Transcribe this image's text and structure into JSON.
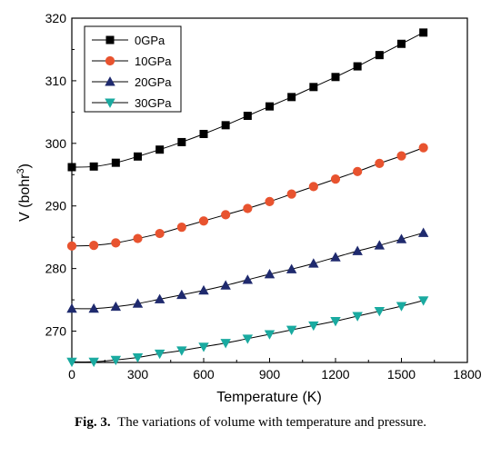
{
  "caption": {
    "label": "Fig. 3.",
    "text": "The variations of volume with temperature and pressure."
  },
  "chart_data": {
    "type": "line",
    "xlabel": "Temperature (K)",
    "ylabel": "V (bohr",
    "ylabel_sup": "3",
    "ylabel_close": ")",
    "xlim": [
      0,
      1800
    ],
    "ylim": [
      265,
      320
    ],
    "xticks": [
      0,
      300,
      600,
      900,
      1200,
      1500,
      1800
    ],
    "yticks": [
      270,
      280,
      290,
      300,
      310,
      320
    ],
    "legend_position": "top-left",
    "x": [
      0,
      100,
      200,
      300,
      400,
      500,
      600,
      700,
      800,
      900,
      1000,
      1100,
      1200,
      1300,
      1400,
      1500,
      1600
    ],
    "series": [
      {
        "name": "0GPa",
        "marker": "square",
        "color": "#000000",
        "values": [
          296.2,
          296.3,
          296.9,
          297.9,
          299.0,
          300.2,
          301.5,
          302.9,
          304.4,
          305.9,
          307.4,
          309.0,
          310.6,
          312.3,
          314.1,
          315.9,
          317.7
        ]
      },
      {
        "name": "10GPa",
        "marker": "circle",
        "color": "#e8532f",
        "values": [
          283.6,
          283.7,
          284.1,
          284.8,
          285.6,
          286.6,
          287.6,
          288.6,
          289.6,
          290.7,
          291.9,
          293.1,
          294.3,
          295.5,
          296.8,
          298.0,
          299.3
        ]
      },
      {
        "name": "20GPa",
        "marker": "triangle-up",
        "color": "#1f2a6e",
        "values": [
          273.6,
          273.6,
          273.9,
          274.4,
          275.1,
          275.8,
          276.5,
          277.3,
          278.2,
          279.1,
          279.9,
          280.8,
          281.8,
          282.8,
          283.7,
          284.7,
          285.7
        ]
      },
      {
        "name": "30GPa",
        "marker": "triangle-down",
        "color": "#1aaaa0",
        "values": [
          265.1,
          265.1,
          265.4,
          265.8,
          266.4,
          266.9,
          267.5,
          268.1,
          268.8,
          269.5,
          270.2,
          270.9,
          271.6,
          272.4,
          273.2,
          274.0,
          274.9
        ]
      }
    ]
  }
}
